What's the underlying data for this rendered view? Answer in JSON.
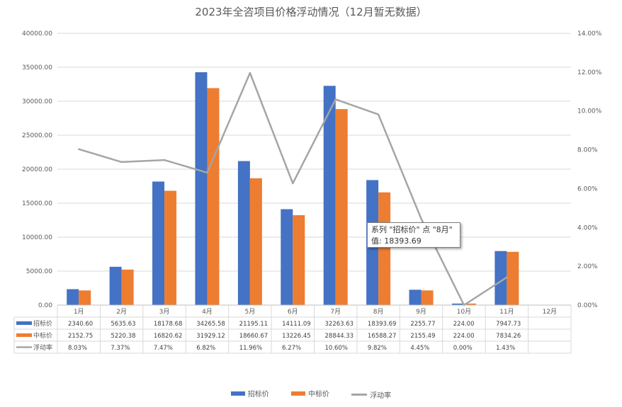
{
  "chart_data": {
    "type": "bar",
    "title": "2023年全咨项目价格浮动情况（12月暂无数据）",
    "categories": [
      "1月",
      "2月",
      "3月",
      "4月",
      "5月",
      "6月",
      "7月",
      "8月",
      "9月",
      "10月",
      "11月",
      "12月"
    ],
    "series": [
      {
        "name": "招标价",
        "kind": "bar",
        "color": "#4472C4",
        "axis": "left",
        "values": [
          2340.6,
          5635.63,
          18178.68,
          34265.58,
          21195.11,
          14111.09,
          32263.63,
          18393.69,
          2255.77,
          224.0,
          7947.73,
          null
        ],
        "labels": [
          "2340.60",
          "5635.63",
          "18178.68",
          "34265.58",
          "21195.11",
          "14111.09",
          "32263.63",
          "18393.69",
          "2255.77",
          "224.00",
          "7947.73",
          ""
        ]
      },
      {
        "name": "中标价",
        "kind": "bar",
        "color": "#ED7D31",
        "axis": "left",
        "values": [
          2152.75,
          5220.38,
          16820.62,
          31929.12,
          18660.67,
          13226.45,
          28844.33,
          16588.27,
          2155.49,
          224.0,
          7834.26,
          null
        ],
        "labels": [
          "2152.75",
          "5220.38",
          "16820.62",
          "31929.12",
          "18660.67",
          "13226.45",
          "28844.33",
          "16588.27",
          "2155.49",
          "224.00",
          "7834.26",
          ""
        ]
      },
      {
        "name": "浮动率",
        "kind": "line",
        "color": "#A5A5A5",
        "axis": "right",
        "values": [
          8.03,
          7.37,
          7.47,
          6.82,
          11.96,
          6.27,
          10.6,
          9.82,
          4.45,
          0.0,
          1.43,
          null
        ],
        "labels": [
          "8.03%",
          "7.37%",
          "7.47%",
          "6.82%",
          "11.96%",
          "6.27%",
          "10.60%",
          "9.82%",
          "4.45%",
          "0.00%",
          "1.43%",
          ""
        ]
      }
    ],
    "y_left": {
      "min": 0,
      "max": 40000,
      "ticks": [
        "0.00",
        "5000.00",
        "10000.00",
        "15000.00",
        "20000.00",
        "25000.00",
        "30000.00",
        "35000.00",
        "40000.00"
      ]
    },
    "y_right": {
      "min": 0,
      "max": 14,
      "ticks": [
        "0.00%",
        "2.00%",
        "4.00%",
        "6.00%",
        "8.00%",
        "10.00%",
        "12.00%",
        "14.00%"
      ]
    },
    "grid": true,
    "legend_position": "bottom",
    "data_table": true
  },
  "tooltip": {
    "line1": "系列 \"招标价\" 点 \"8月\"",
    "line2": "值: 18393.69"
  },
  "legend": {
    "items": [
      {
        "label": "招标价",
        "color": "#4472C4"
      },
      {
        "label": "中标价",
        "color": "#ED7D31"
      },
      {
        "label": "浮动率",
        "color": "#A5A5A5"
      }
    ]
  }
}
